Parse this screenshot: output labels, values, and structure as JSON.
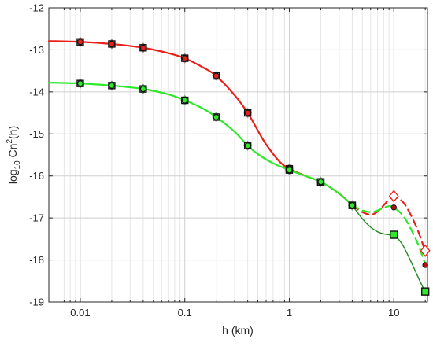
{
  "chart_data": {
    "type": "line",
    "title": "",
    "xlabel": "h (km)",
    "ylabel": "log10 Cn2(h)",
    "ylabel_parts": {
      "base": "log",
      "sub": "10",
      "mid": " Cn",
      "sup": "2",
      "tail": "(h)"
    },
    "x_scale": "log",
    "xlim": [
      0.005,
      21
    ],
    "ylim": [
      -19,
      -12
    ],
    "x_ticks": [
      0.01,
      0.1,
      1,
      10
    ],
    "x_tick_labels": [
      "0.01",
      "0.1",
      "1",
      "10"
    ],
    "y_ticks": [
      -19,
      -18,
      -17,
      -16,
      -15,
      -14,
      -13,
      -12
    ],
    "y_tick_labels": [
      "-19",
      "-18",
      "-17",
      "-16",
      "-15",
      "-14",
      "-13",
      "-12"
    ],
    "grid": true,
    "colors": {
      "red": "#e8201a",
      "green": "#2ee82a",
      "dark_green": "#1f8a1c",
      "dark_red": "#b8120e"
    },
    "curves": [
      {
        "color": "red",
        "x": [
          0.005,
          0.01,
          0.02,
          0.04,
          0.07,
          0.1,
          0.15,
          0.2,
          0.3,
          0.4,
          0.5,
          0.6,
          0.8,
          1.0,
          1.5,
          2.0,
          3.0,
          4.0
        ],
        "y": [
          -12.79,
          -12.81,
          -12.86,
          -12.95,
          -13.08,
          -13.2,
          -13.42,
          -13.62,
          -14.08,
          -14.5,
          -14.92,
          -15.25,
          -15.65,
          -15.83,
          -16.02,
          -16.14,
          -16.42,
          -16.7
        ]
      },
      {
        "color": "green",
        "x": [
          0.005,
          0.01,
          0.02,
          0.04,
          0.07,
          0.1,
          0.15,
          0.2,
          0.3,
          0.4,
          0.5,
          0.7,
          1.0,
          1.5,
          2.0,
          3.0,
          4.0
        ],
        "y": [
          -13.78,
          -13.8,
          -13.85,
          -13.93,
          -14.06,
          -14.2,
          -14.4,
          -14.6,
          -14.95,
          -15.28,
          -15.48,
          -15.7,
          -15.86,
          -16.02,
          -16.14,
          -16.42,
          -16.7
        ]
      },
      {
        "color": "red",
        "dashed": true,
        "x": [
          4.0,
          5.0,
          6.0,
          7.0,
          8.0,
          9.0,
          10.0,
          12.0,
          14.0,
          17.0,
          20.0
        ],
        "y": [
          -16.7,
          -16.86,
          -16.92,
          -16.85,
          -16.7,
          -16.56,
          -16.5,
          -16.6,
          -16.85,
          -17.3,
          -17.8
        ]
      },
      {
        "color": "green",
        "dashed": true,
        "x": [
          4.0,
          5.0,
          6.0,
          7.0,
          8.0,
          9.0,
          10.0,
          12.0,
          14.0,
          17.0,
          20.0
        ],
        "y": [
          -16.7,
          -16.82,
          -16.86,
          -16.82,
          -16.76,
          -16.72,
          -16.75,
          -16.92,
          -17.18,
          -17.62,
          -18.1
        ]
      },
      {
        "color": "dark_green",
        "width": 1.4,
        "x": [
          4.0,
          5.0,
          6.0,
          7.0,
          8.0,
          9.0,
          10.0,
          11.0,
          12.0,
          13.0,
          15.0,
          17.0,
          19.0,
          20.0
        ],
        "y": [
          -16.7,
          -17.02,
          -17.22,
          -17.33,
          -17.38,
          -17.4,
          -17.42,
          -17.5,
          -17.62,
          -17.78,
          -18.1,
          -18.4,
          -18.65,
          -18.75
        ]
      }
    ],
    "markers": [
      {
        "shape": "diamond",
        "color": "red",
        "x": [
          0.01,
          0.02,
          0.04,
          0.1,
          0.2,
          0.4,
          1.0,
          2.0,
          4.0,
          10.0,
          20.0
        ],
        "y": [
          -12.81,
          -12.86,
          -12.95,
          -13.2,
          -13.62,
          -14.5,
          -15.83,
          -16.14,
          -16.7,
          -16.48,
          -17.78
        ]
      },
      {
        "shape": "diamond",
        "color": "green",
        "x": [
          0.01,
          0.02,
          0.04,
          0.1,
          0.2,
          0.4,
          1.0,
          2.0,
          4.0
        ],
        "y": [
          -13.8,
          -13.85,
          -13.93,
          -14.2,
          -14.6,
          -15.28,
          -15.86,
          -16.14,
          -16.7
        ]
      },
      {
        "shape": "square",
        "color": "red",
        "x": [
          0.01,
          0.02,
          0.04,
          0.1,
          0.2,
          0.4,
          1.0,
          2.0,
          4.0
        ],
        "y": [
          -12.81,
          -12.86,
          -12.95,
          -13.2,
          -13.62,
          -14.5,
          -15.83,
          -16.14,
          -16.7
        ]
      },
      {
        "shape": "square",
        "color": "green",
        "x": [
          0.01,
          0.02,
          0.04,
          0.1,
          0.2,
          0.4,
          1.0,
          2.0,
          4.0,
          10.0,
          20.0
        ],
        "y": [
          -13.8,
          -13.85,
          -13.93,
          -14.2,
          -14.6,
          -15.28,
          -15.86,
          -16.14,
          -16.7,
          -17.4,
          -18.75
        ]
      },
      {
        "shape": "circle",
        "color": "red",
        "x": [
          0.01,
          0.02,
          0.04,
          0.1,
          0.2,
          0.4,
          1.0,
          2.0,
          4.0,
          10.0,
          20.0
        ],
        "y": [
          -12.81,
          -12.86,
          -12.95,
          -13.2,
          -13.62,
          -14.5,
          -15.83,
          -16.14,
          -16.7,
          -16.75,
          -18.12
        ]
      },
      {
        "shape": "circle",
        "color": "green",
        "x": [
          0.01,
          0.02,
          0.04,
          0.1,
          0.2,
          0.4,
          1.0,
          2.0,
          4.0
        ],
        "y": [
          -13.8,
          -13.85,
          -13.93,
          -14.2,
          -14.6,
          -15.28,
          -15.86,
          -16.14,
          -16.7
        ]
      }
    ]
  }
}
